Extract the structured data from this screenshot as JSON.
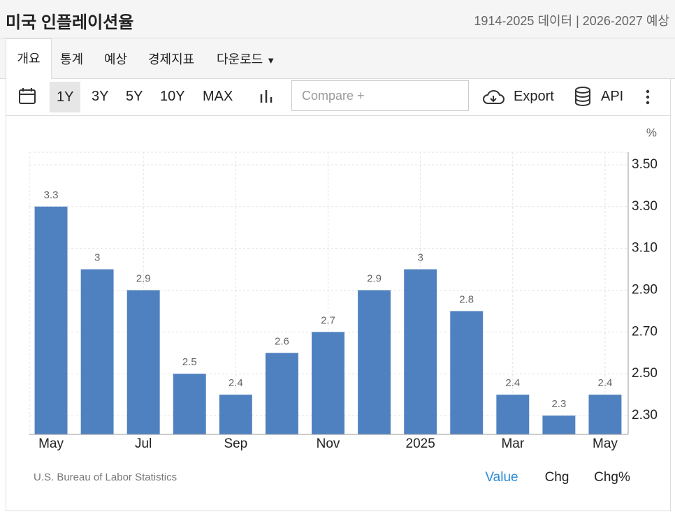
{
  "header": {
    "title": "미국 인플레이션율",
    "info": "1914-2025 데이터 | 2026-2027 예상"
  },
  "tabs": [
    "개요",
    "통계",
    "예상",
    "경제지표",
    "다운로드"
  ],
  "toolbar": {
    "ranges": [
      "1Y",
      "3Y",
      "5Y",
      "10Y",
      "MAX"
    ],
    "compare": "Compare +",
    "export": "Export",
    "api": "API"
  },
  "footer": {
    "source": "U.S. Bureau of Labor Statistics",
    "modes": [
      "Value",
      "Chg",
      "Chg%"
    ]
  },
  "chart_data": {
    "type": "bar",
    "unit": "%",
    "categories": [
      "May",
      null,
      "Jul",
      null,
      "Sep",
      null,
      "Nov",
      null,
      "2025",
      null,
      "Mar",
      null,
      "May"
    ],
    "values": [
      3.3,
      3,
      2.9,
      2.5,
      2.4,
      2.6,
      2.7,
      2.9,
      3,
      2.8,
      2.4,
      2.3,
      2.4
    ],
    "color": "#4f81c0",
    "ylim": [
      2.21,
      3.56
    ],
    "yticks": [
      {
        "value": 2.3,
        "label": "2.30"
      },
      {
        "value": 2.5,
        "label": "2.50"
      },
      {
        "value": 2.7,
        "label": "2.70"
      },
      {
        "value": 2.9,
        "label": "2.90"
      },
      {
        "value": 3.1,
        "label": "3.10"
      },
      {
        "value": 3.3,
        "label": "3.30"
      },
      {
        "value": 3.5,
        "label": "3.50"
      }
    ],
    "grid": true
  }
}
